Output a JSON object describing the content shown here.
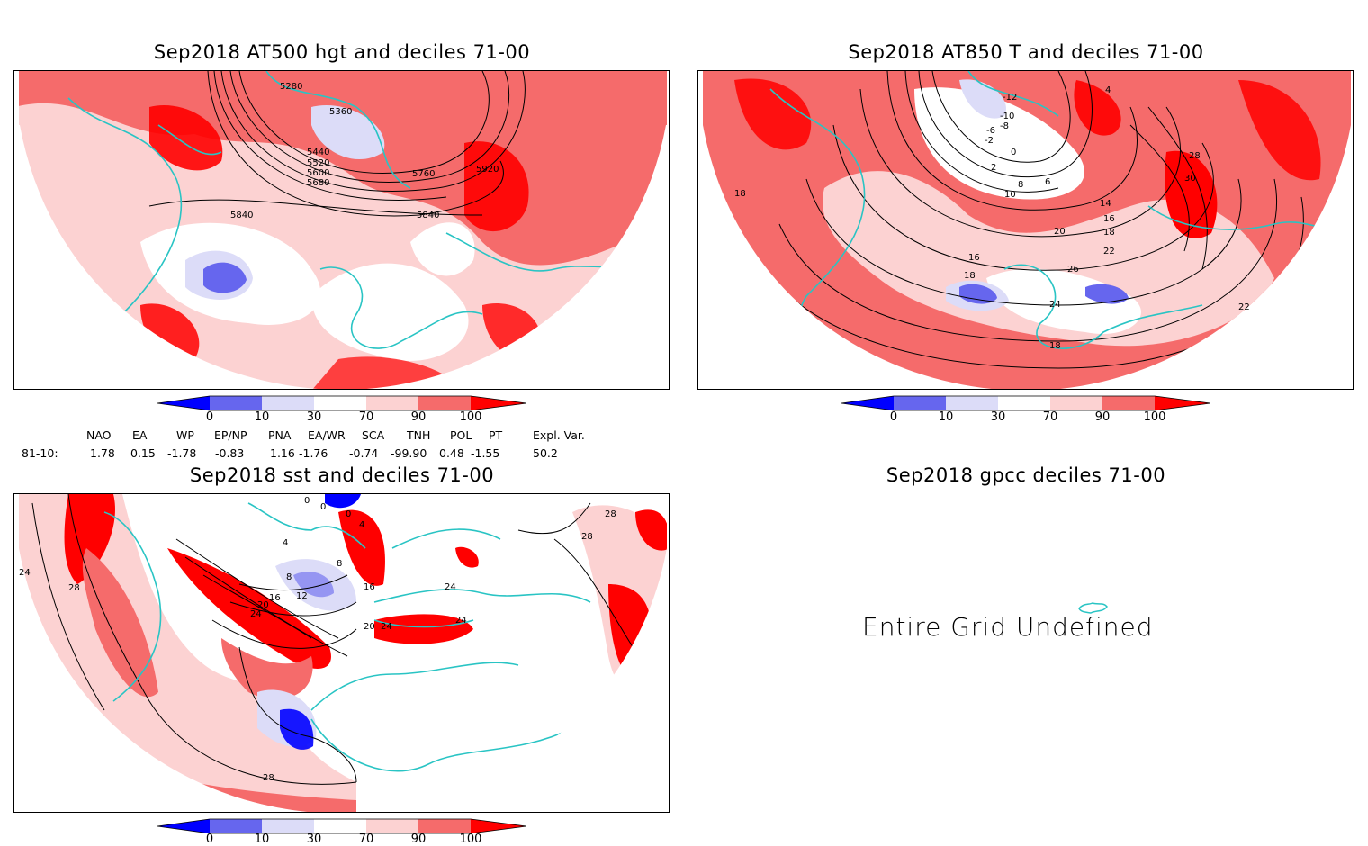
{
  "panels": [
    {
      "id": "p1",
      "title": "Sep2018 AT500 hgt and deciles 71-00",
      "contour_labels": [
        "5280",
        "5360",
        "5440",
        "5520",
        "5600",
        "5680",
        "5760",
        "5840",
        "5920",
        "5840"
      ]
    },
    {
      "id": "p2",
      "title": "Sep2018 AT850 T and deciles 71-00",
      "contour_labels": [
        "-12",
        "-10",
        "-8",
        "-6",
        "-2",
        "0",
        "2",
        "4",
        "6",
        "8",
        "10",
        "14",
        "16",
        "18",
        "20",
        "22",
        "24",
        "26",
        "28",
        "30",
        "18",
        "18",
        "16",
        "18",
        "22"
      ]
    },
    {
      "id": "p3",
      "title": "Sep2018 sst and deciles 71-00",
      "contour_labels": [
        "0",
        "0",
        "0",
        "4",
        "4",
        "8",
        "8",
        "12",
        "16",
        "16",
        "20",
        "24",
        "24",
        "24",
        "28",
        "28",
        "28",
        "28",
        "24",
        "20",
        "24"
      ]
    },
    {
      "id": "p4",
      "title": "Sep2018 gpcc deciles 71-00",
      "message": "Entire Grid Undefined"
    }
  ],
  "colorbar": {
    "ticks": [
      "0",
      "10",
      "30",
      "70",
      "90",
      "100"
    ],
    "colors": {
      "deep_blue": "#0000ff",
      "mid_blue": "#6666ee",
      "light_blue": "#dcdcf8",
      "white": "#ffffff",
      "light_red": "#fcd2d2",
      "mid_red": "#f56b6b",
      "deep_red": "#ff0000"
    }
  },
  "indices": {
    "headers": [
      "NAO",
      "EA",
      "WP",
      "EP/NP",
      "PNA",
      "EA/WR",
      "SCA",
      "TNH",
      "POL",
      "PT",
      "Expl. Var."
    ],
    "row_label": "81-10:",
    "values": [
      "1.78",
      "0.15",
      "-1.78",
      "-0.83",
      "1.16",
      "-1.76",
      "-0.74",
      "-99.90",
      "0.48",
      "-1.55",
      "50.2"
    ]
  },
  "map_colors": {
    "coast": "#29c4c4",
    "contour": "#000000",
    "grid": "#888888"
  }
}
